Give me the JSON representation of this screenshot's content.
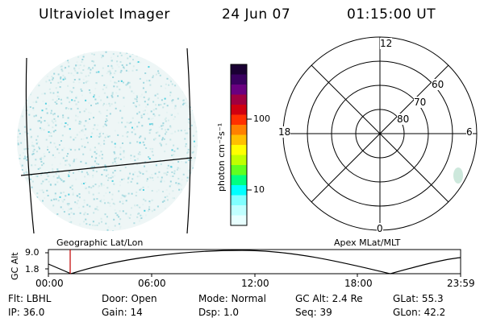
{
  "header": {
    "instrument": "Ultraviolet Imager",
    "date": "24 Jun 07",
    "time": "01:15:00 UT"
  },
  "colorbar": {
    "unit_label": "photon cm⁻²s⁻¹",
    "ticks": [
      "100",
      "10"
    ],
    "colors": [
      "#1a0033",
      "#3a0060",
      "#6a0080",
      "#a00040",
      "#d00010",
      "#ff3000",
      "#ff8000",
      "#ffc000",
      "#ffff00",
      "#c0ff00",
      "#60ff20",
      "#00ff80",
      "#00ffff",
      "#80ffff",
      "#c0ffff",
      "#e8ffff"
    ]
  },
  "polar_plot": {
    "mlt_labels": {
      "top": "12",
      "left": "18",
      "right": "6",
      "bottom": "0"
    },
    "lat_labels": [
      "60",
      "70",
      "80"
    ]
  },
  "timeline": {
    "left_label": "Geographic Lat/Lon",
    "right_label": "Apex MLat/MLT",
    "y_axis_label": "GC Alt",
    "y_ticks": [
      "9.0",
      "1.8"
    ],
    "x_ticks": [
      "00:00",
      "06:00",
      "12:00",
      "18:00",
      "23:59"
    ],
    "marker_time": "01:15"
  },
  "info": {
    "filter": "Flt: LBHL",
    "ip": "IP: 36.0",
    "door": "Door: Open",
    "gain": "Gain: 14",
    "mode": "Mode: Normal",
    "dsp": "Dsp:    1.0",
    "gc_alt": "GC Alt: 2.4 Re",
    "seq": "Seq: 39",
    "glat": "GLat:  55.3",
    "glon": "GLon:  42.2"
  }
}
